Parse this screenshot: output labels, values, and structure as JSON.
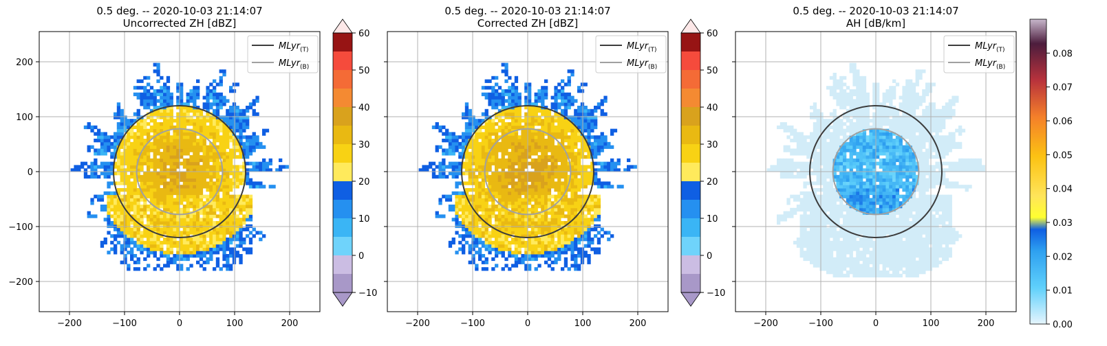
{
  "chart_data": [
    {
      "type": "heatmap",
      "title_line1": "0.5 deg. -- 2020-10-03 21:14:07",
      "title_line2": "Uncorrected ZH [dBZ]",
      "x_ticks": [
        -200,
        -100,
        0,
        100,
        200
      ],
      "y_ticks": [
        200,
        100,
        0,
        -100,
        -200
      ],
      "xlim": [
        -255,
        255
      ],
      "ylim": [
        -255,
        255
      ],
      "grid": true,
      "legend_position": "top-right",
      "legend": [
        {
          "label": "MLyr",
          "sub": "(T)",
          "color": "#3c3c3c"
        },
        {
          "label": "MLyr",
          "sub": "(B)",
          "color": "#a0a0a0"
        }
      ],
      "melting_layer_radius": {
        "top": 120,
        "bottom": 78
      },
      "colorbar": {
        "ticks": [
          60,
          50,
          40,
          30,
          20,
          10,
          0,
          -10
        ],
        "range": [
          -10,
          60
        ],
        "levels": [
          -10,
          -5,
          0,
          5,
          10,
          15,
          20,
          25,
          30,
          35,
          40,
          45,
          50,
          55,
          60
        ],
        "colors": [
          "#a898c8",
          "#cbbde3",
          "#6fd3fb",
          "#3ab5f5",
          "#2590f0",
          "#0f5fe3",
          "#ffea5c",
          "#f8d214",
          "#e9b912",
          "#d9a21d",
          "#f48a32",
          "#f46b36",
          "#f54b3c",
          "#971414"
        ],
        "extend_under_color": "#a898c8",
        "extend_over_color": "#fde8e8"
      }
    },
    {
      "type": "heatmap",
      "title_line1": "0.5 deg. -- 2020-10-03 21:14:07",
      "title_line2": "Corrected ZH [dBZ]",
      "x_ticks": [
        -200,
        -100,
        0,
        100,
        200
      ],
      "y_ticks": [
        200,
        100,
        0,
        -100,
        -200
      ],
      "xlim": [
        -255,
        255
      ],
      "ylim": [
        -255,
        255
      ],
      "grid": true,
      "legend_position": "top-right",
      "legend": [
        {
          "label": "MLyr",
          "sub": "(T)",
          "color": "#3c3c3c"
        },
        {
          "label": "MLyr",
          "sub": "(B)",
          "color": "#a0a0a0"
        }
      ],
      "melting_layer_radius": {
        "top": 120,
        "bottom": 78
      },
      "colorbar": {
        "ticks": [
          60,
          50,
          40,
          30,
          20,
          10,
          0,
          -10
        ],
        "range": [
          -10,
          60
        ],
        "levels": [
          -10,
          -5,
          0,
          5,
          10,
          15,
          20,
          25,
          30,
          35,
          40,
          45,
          50,
          55,
          60
        ],
        "colors": [
          "#a898c8",
          "#cbbde3",
          "#6fd3fb",
          "#3ab5f5",
          "#2590f0",
          "#0f5fe3",
          "#ffea5c",
          "#f8d214",
          "#e9b912",
          "#d9a21d",
          "#f48a32",
          "#f46b36",
          "#f54b3c",
          "#971414"
        ],
        "extend_under_color": "#a898c8",
        "extend_over_color": "#fde8e8"
      }
    },
    {
      "type": "heatmap",
      "title_line1": "0.5 deg. -- 2020-10-03 21:14:07",
      "title_line2": "AH [dB/km]",
      "x_ticks": [
        -200,
        -100,
        0,
        100,
        200
      ],
      "y_ticks": [
        200,
        100,
        0,
        -100,
        -200
      ],
      "xlim": [
        -255,
        255
      ],
      "ylim": [
        -255,
        255
      ],
      "grid": true,
      "legend_position": "top-right",
      "legend": [
        {
          "label": "MLyr",
          "sub": "(T)",
          "color": "#3c3c3c"
        },
        {
          "label": "MLyr",
          "sub": "(B)",
          "color": "#a0a0a0"
        }
      ],
      "melting_layer_radius": {
        "top": 120,
        "bottom": 78
      },
      "colorbar": {
        "tick_labels": [
          "0.08",
          "0.07",
          "0.06",
          "0.05",
          "0.04",
          "0.03",
          "0.02",
          "0.01",
          "0.00"
        ],
        "range": [
          0,
          0.09
        ],
        "gradient": [
          {
            "at": 0.0,
            "color": "#e6f5fd"
          },
          {
            "at": 0.12,
            "color": "#5fd0fb"
          },
          {
            "at": 0.24,
            "color": "#2ea0f0"
          },
          {
            "at": 0.31,
            "color": "#0f5fe3"
          },
          {
            "at": 0.35,
            "color": "#ffff30"
          },
          {
            "at": 0.42,
            "color": "#ffe45a"
          },
          {
            "at": 0.55,
            "color": "#fcc213"
          },
          {
            "at": 0.68,
            "color": "#f47f2a"
          },
          {
            "at": 0.8,
            "color": "#b8323c"
          },
          {
            "at": 0.92,
            "color": "#4c1d3d"
          },
          {
            "at": 1.0,
            "color": "#c8b8cc"
          }
        ]
      }
    }
  ]
}
